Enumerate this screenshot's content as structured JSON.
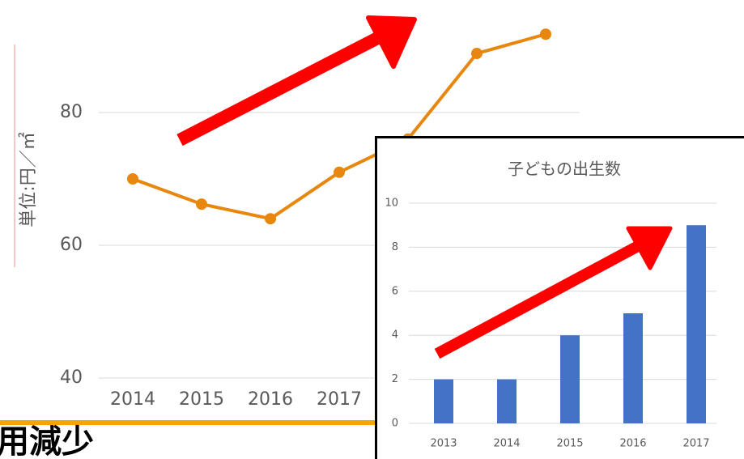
{
  "chart_data": [
    {
      "type": "line",
      "y_label": "単位:円／㎡",
      "categories": [
        "2014",
        "2015",
        "2016",
        "2017",
        null,
        null,
        null
      ],
      "values": [
        70,
        66.2,
        64,
        71,
        76,
        88.9,
        91.8
      ],
      "color": "#e8870e",
      "ylim": [
        40,
        95
      ],
      "yticks": [
        40,
        60,
        80
      ],
      "grid": true
    },
    {
      "type": "bar",
      "title": "子どもの出生数",
      "categories": [
        "2013",
        "2014",
        "2015",
        "2016",
        "2017"
      ],
      "values": [
        2,
        2,
        4,
        5,
        9
      ],
      "color": "#4472c4",
      "ylim": [
        0,
        10
      ],
      "yticks": [
        0,
        2,
        4,
        6,
        8,
        10
      ],
      "grid": true
    }
  ],
  "caption": "用減少"
}
